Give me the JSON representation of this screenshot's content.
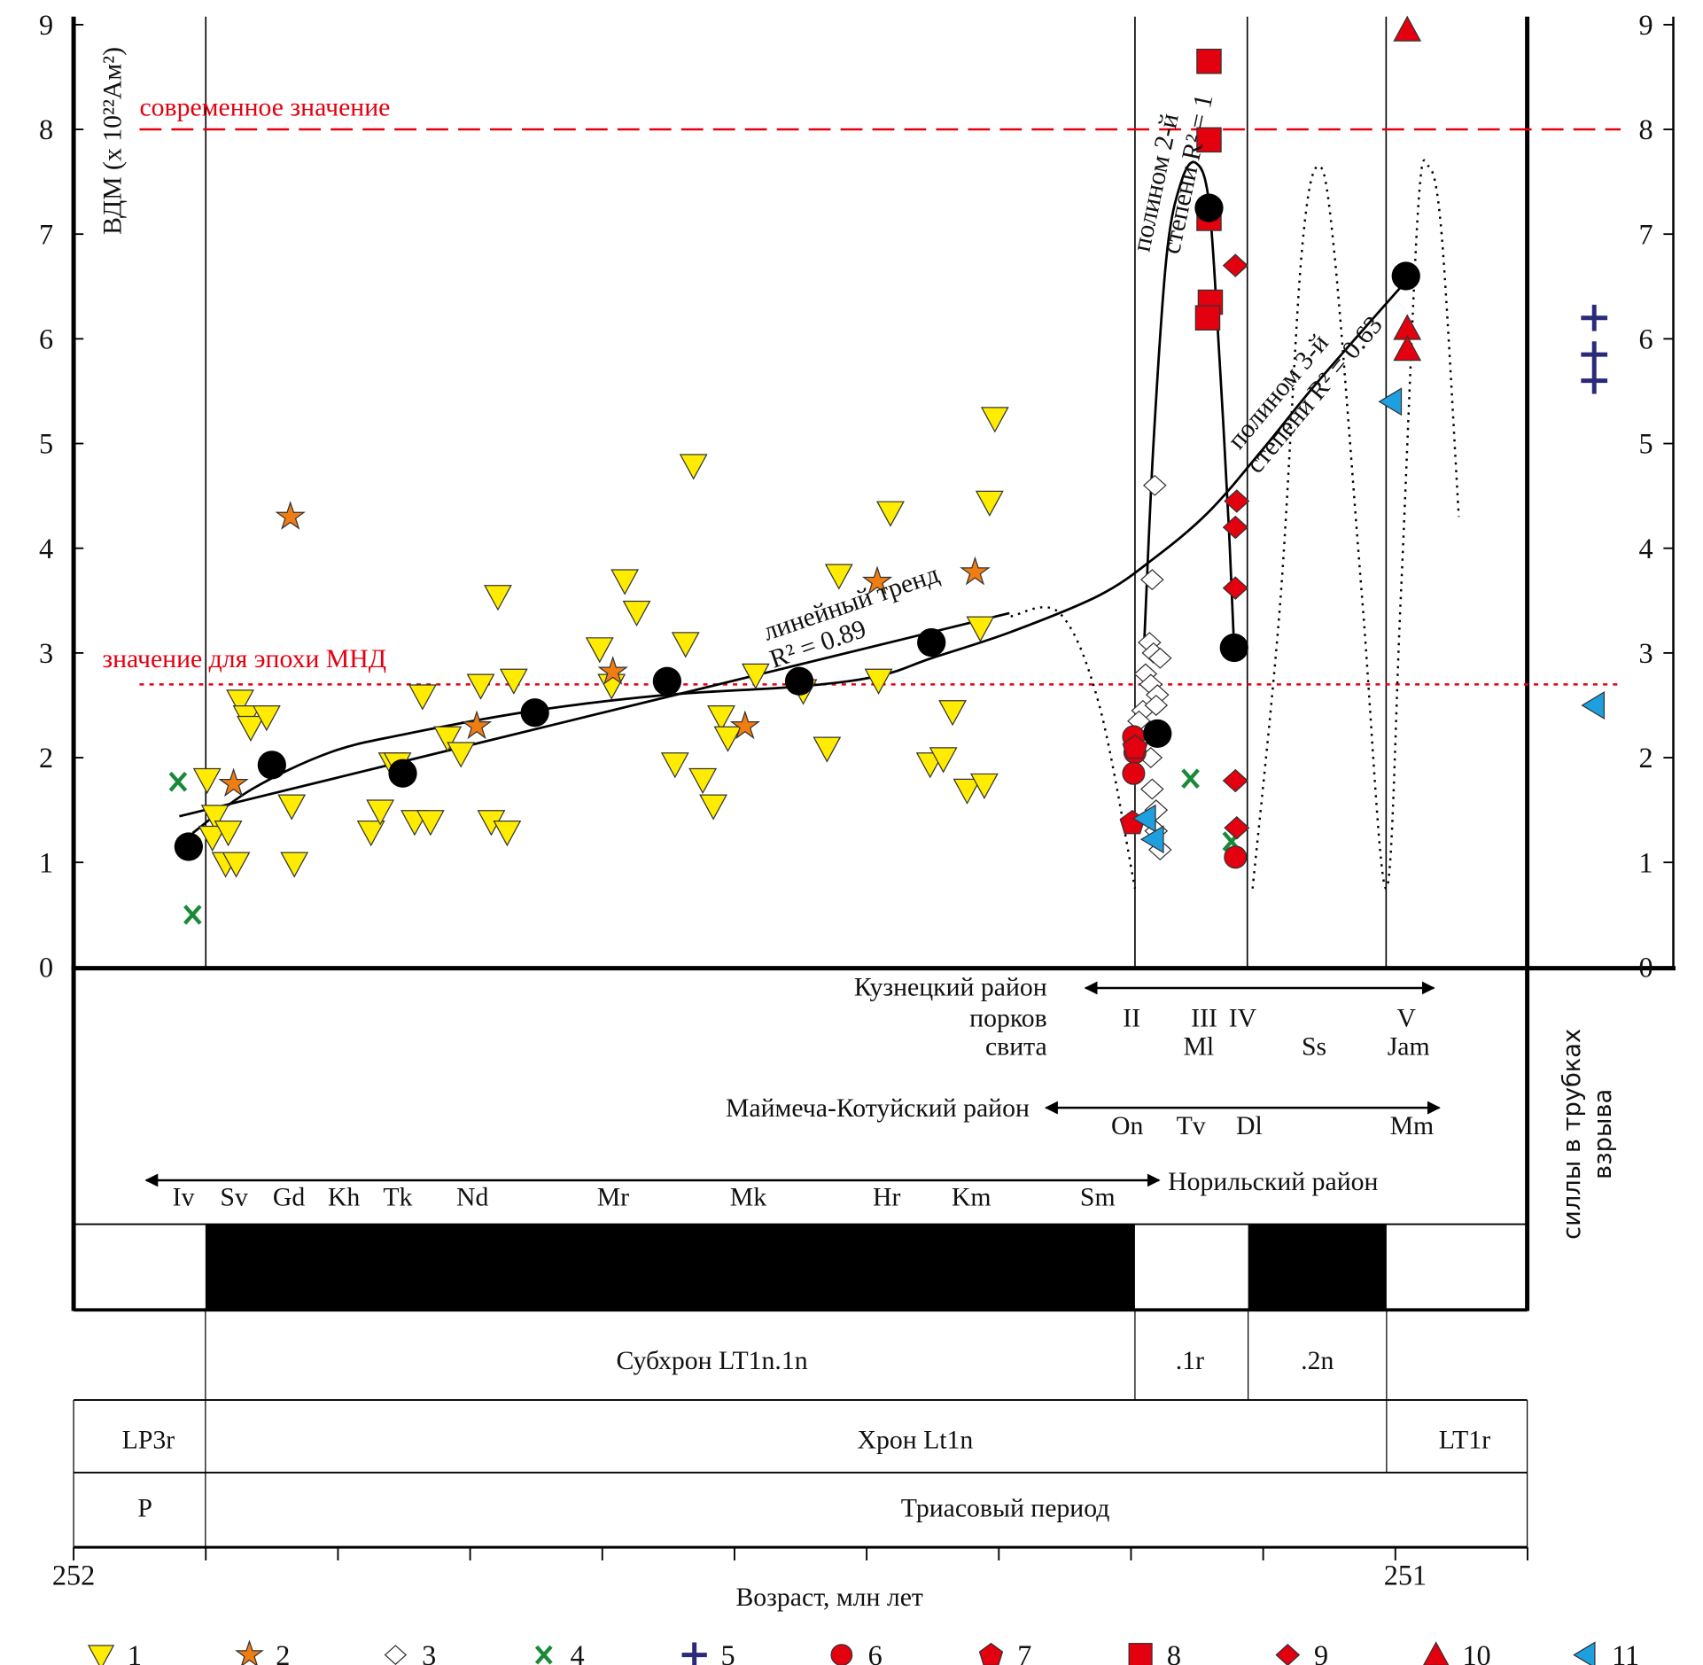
{
  "chart_data": {
    "type": "scatter",
    "title": "",
    "ylabel": "ВДМ (x 10²²Ам²)",
    "xlabel": "Возраст, млн лет",
    "xlim": [
      252,
      250.9
    ],
    "ylim": [
      0,
      9
    ],
    "y_ticks": [
      "0",
      "1",
      "2",
      "3",
      "4",
      "5",
      "6",
      "7",
      "8",
      "9"
    ],
    "x_tick_labels": [
      {
        "value": 252,
        "label": "252"
      },
      {
        "value": 251,
        "label": "251"
      }
    ],
    "x_minor_ticks": [
      252,
      251.9,
      251.8,
      251.7,
      251.6,
      251.5,
      251.4,
      251.3,
      251.2,
      251.1,
      251.0,
      250.9
    ],
    "reference_lines": [
      {
        "value": 8,
        "label": "современное значение",
        "color": "#e3000f",
        "style": "dashed"
      },
      {
        "value": 2.7,
        "label": "значение для эпохи МНД",
        "color": "#e3000f",
        "style": "dotted"
      }
    ],
    "boundaries": [
      251.9,
      251.197,
      251.112,
      251.007
    ],
    "series": [
      {
        "name": "1",
        "marker": "triangle-down",
        "color": "#ffec00",
        "points": [
          [
            251.899,
            1.8
          ],
          [
            251.893,
            1.45
          ],
          [
            251.895,
            1.25
          ],
          [
            251.883,
            1.3
          ],
          [
            251.885,
            1.0
          ],
          [
            251.877,
            1.0
          ],
          [
            251.874,
            2.55
          ],
          [
            251.869,
            2.4
          ],
          [
            251.866,
            2.3
          ],
          [
            251.854,
            2.4
          ],
          [
            251.835,
            1.55
          ],
          [
            251.833,
            1.0
          ],
          [
            251.775,
            1.3
          ],
          [
            251.768,
            1.5
          ],
          [
            251.759,
            1.95
          ],
          [
            251.755,
            1.95
          ],
          [
            251.742,
            1.4
          ],
          [
            251.73,
            1.4
          ],
          [
            251.736,
            2.6
          ],
          [
            251.717,
            2.2
          ],
          [
            251.707,
            2.05
          ],
          [
            251.692,
            2.7
          ],
          [
            251.684,
            1.4
          ],
          [
            251.679,
            3.55
          ],
          [
            251.672,
            1.3
          ],
          [
            251.667,
            2.75
          ],
          [
            251.602,
            3.05
          ],
          [
            251.593,
            2.7
          ],
          [
            251.583,
            3.7
          ],
          [
            251.574,
            3.4
          ],
          [
            251.545,
            1.95
          ],
          [
            251.537,
            3.1
          ],
          [
            251.531,
            4.8
          ],
          [
            251.524,
            1.8
          ],
          [
            251.516,
            1.55
          ],
          [
            251.51,
            2.4
          ],
          [
            251.505,
            2.2
          ],
          [
            251.484,
            2.8
          ],
          [
            251.448,
            2.65
          ],
          [
            251.43,
            2.1
          ],
          [
            251.421,
            3.75
          ],
          [
            251.391,
            2.75
          ],
          [
            251.382,
            4.35
          ],
          [
            251.352,
            1.95
          ],
          [
            251.342,
            2.0
          ],
          [
            251.335,
            2.45
          ],
          [
            251.324,
            1.7
          ],
          [
            251.314,
            3.25
          ],
          [
            251.311,
            1.75
          ],
          [
            251.307,
            4.45
          ],
          [
            251.303,
            5.25
          ]
        ]
      },
      {
        "name": "2",
        "marker": "star",
        "color": "#f07d12",
        "points": [
          [
            251.879,
            1.75
          ],
          [
            251.836,
            4.3
          ],
          [
            251.695,
            2.3
          ],
          [
            251.592,
            2.82
          ],
          [
            251.492,
            2.3
          ],
          [
            251.392,
            3.68
          ],
          [
            251.318,
            3.77
          ]
        ]
      },
      {
        "name": "3",
        "marker": "diamond-open",
        "color": "#ffffff",
        "points": [
          [
            251.182,
            4.6
          ],
          [
            251.184,
            3.7
          ],
          [
            251.186,
            3.1
          ],
          [
            251.183,
            3.0
          ],
          [
            251.178,
            2.95
          ],
          [
            251.189,
            2.8
          ],
          [
            251.185,
            2.7
          ],
          [
            251.18,
            2.6
          ],
          [
            251.191,
            2.45
          ],
          [
            251.181,
            2.5
          ],
          [
            251.194,
            2.35
          ],
          [
            251.185,
            2.0
          ],
          [
            251.184,
            1.7
          ],
          [
            251.181,
            1.5
          ],
          [
            251.181,
            1.3
          ],
          [
            251.178,
            1.12
          ]
        ]
      },
      {
        "name": "4",
        "marker": "x",
        "color": "#1a8a3a",
        "points": [
          [
            251.921,
            1.77
          ],
          [
            251.91,
            0.5
          ],
          [
            251.155,
            1.8
          ],
          [
            251.124,
            1.2
          ]
        ]
      },
      {
        "name": "5",
        "marker": "plus",
        "color": "#2b2a7a",
        "points": [],
        "sills": [
          6.2,
          5.85,
          5.6
        ]
      },
      {
        "name": "6",
        "marker": "circle",
        "color": "#e3000f",
        "points": [
          [
            251.198,
            2.2
          ],
          [
            251.197,
            2.05
          ],
          [
            251.198,
            1.85
          ],
          [
            251.121,
            1.05
          ]
        ]
      },
      {
        "name": "7",
        "marker": "pentagon",
        "color": "#e3000f",
        "points": [
          [
            251.197,
            2.1
          ],
          [
            251.199,
            1.38
          ]
        ]
      },
      {
        "name": "8",
        "marker": "square",
        "color": "#e3000f",
        "points": [
          [
            251.141,
            8.65
          ],
          [
            251.141,
            7.9
          ],
          [
            251.141,
            7.15
          ],
          [
            251.14,
            6.35
          ],
          [
            251.142,
            6.2
          ]
        ]
      },
      {
        "name": "9",
        "marker": "diamond",
        "color": "#e3000f",
        "points": [
          [
            251.121,
            6.7
          ],
          [
            251.12,
            4.45
          ],
          [
            251.121,
            4.2
          ],
          [
            251.121,
            3.62
          ],
          [
            251.121,
            1.78
          ],
          [
            251.12,
            1.33
          ]
        ]
      },
      {
        "name": "10",
        "marker": "triangle-up",
        "color": "#e3000f",
        "points": [
          [
            250.991,
            8.95
          ],
          [
            250.991,
            6.1
          ],
          [
            250.991,
            5.9
          ]
        ]
      },
      {
        "name": "11",
        "marker": "triangle-left",
        "color": "#1ea0e0",
        "points": [
          [
            251.189,
            1.42
          ],
          [
            251.183,
            1.22
          ],
          [
            251.003,
            5.4
          ]
        ],
        "sills": [
          2.5
        ]
      },
      {
        "name": "means",
        "marker": "mean-circle",
        "color": "#000000",
        "points": [
          [
            251.913,
            1.15
          ],
          [
            251.85,
            1.93
          ],
          [
            251.751,
            1.85
          ],
          [
            251.651,
            2.43
          ],
          [
            251.551,
            2.73
          ],
          [
            251.451,
            2.73
          ],
          [
            251.351,
            3.1
          ],
          [
            251.18,
            2.23
          ],
          [
            251.141,
            7.25
          ],
          [
            251.122,
            3.05
          ],
          [
            250.992,
            6.6
          ]
        ]
      }
    ],
    "trends": [
      {
        "name": "linear",
        "label": "линейный тренд",
        "r2_label": "R² = 0.89",
        "style": "solid",
        "points": [
          [
            251.92,
            1.44
          ],
          [
            251.292,
            3.38
          ]
        ]
      },
      {
        "name": "poly3",
        "label": "полином 3-й",
        "label2": "степени R² = 0.63",
        "style": "solid",
        "points": [
          [
            251.91,
            1.28
          ],
          [
            251.865,
            1.7
          ],
          [
            251.806,
            2.05
          ],
          [
            251.751,
            2.22
          ],
          [
            251.651,
            2.45
          ],
          [
            251.551,
            2.6
          ],
          [
            251.451,
            2.68
          ],
          [
            251.391,
            2.78
          ],
          [
            251.351,
            2.95
          ],
          [
            251.291,
            3.2
          ],
          [
            251.224,
            3.55
          ],
          [
            251.183,
            3.9
          ],
          [
            251.141,
            4.35
          ],
          [
            251.1,
            4.95
          ],
          [
            251.058,
            5.6
          ],
          [
            250.992,
            6.55
          ]
        ]
      },
      {
        "name": "poly2",
        "label": "полином 2-й",
        "label2": "степени R² = 1",
        "style": "solid",
        "points": [
          [
            251.19,
            3.1
          ],
          [
            251.183,
            5.0
          ],
          [
            251.173,
            6.8
          ],
          [
            251.162,
            7.5
          ],
          [
            251.151,
            7.68
          ],
          [
            251.141,
            7.3
          ],
          [
            251.133,
            5.8
          ],
          [
            251.126,
            4.2
          ],
          [
            251.122,
            3.05
          ]
        ]
      },
      {
        "name": "oscillation-a",
        "style": "dotted",
        "points": [
          [
            251.291,
            3.35
          ],
          [
            251.254,
            3.38
          ],
          [
            251.224,
            2.5
          ],
          [
            251.197,
            0.75
          ]
        ]
      },
      {
        "name": "oscillation-b",
        "style": "dotted",
        "points": [
          [
            251.108,
            0.75
          ],
          [
            251.087,
            3.5
          ],
          [
            251.071,
            6.8
          ],
          [
            251.058,
            7.65
          ],
          [
            251.046,
            6.8
          ],
          [
            251.025,
            3.5
          ],
          [
            251.007,
            0.75
          ],
          [
            250.996,
            3.5
          ],
          [
            250.983,
            7.2
          ],
          [
            250.975,
            7.65
          ],
          [
            250.965,
            7.0
          ],
          [
            250.952,
            4.3
          ]
        ]
      }
    ],
    "legend": [
      "1",
      "2",
      "3",
      "4",
      "5",
      "6",
      "7",
      "8",
      "9",
      "10",
      "11"
    ],
    "legend_placement": "bottom"
  },
  "sills_label": [
    "силлы в трубках",
    "взрыва"
  ],
  "kuznetsk": {
    "title": "Кузнецкий район",
    "row1_label": "порков",
    "row2_label": "свита",
    "row1": [
      "II",
      "III",
      "IV",
      "V"
    ],
    "row2": [
      "Ml",
      "Ss",
      "Jam"
    ]
  },
  "maimecha": {
    "title": "Маймеча-Котуйский район",
    "items": [
      "On",
      "Tv",
      "Dl",
      "Mm"
    ]
  },
  "norilsk": {
    "title": "Норильский район",
    "items": [
      "Iv",
      "Sv",
      "Gd",
      "Kh",
      "Tk",
      "Nd",
      "Mr",
      "Mk",
      "Hr",
      "Km",
      "Sm"
    ]
  },
  "polarity": {
    "subchron": "Субхрон LT1n.1n",
    "sub_1r": ".1r",
    "sub_2n": ".2n",
    "chron_left": "LP3r",
    "chron": "Хрон Lt1n",
    "chron_right": "LT1r",
    "period_left": "P",
    "period": "Триасовый период"
  }
}
